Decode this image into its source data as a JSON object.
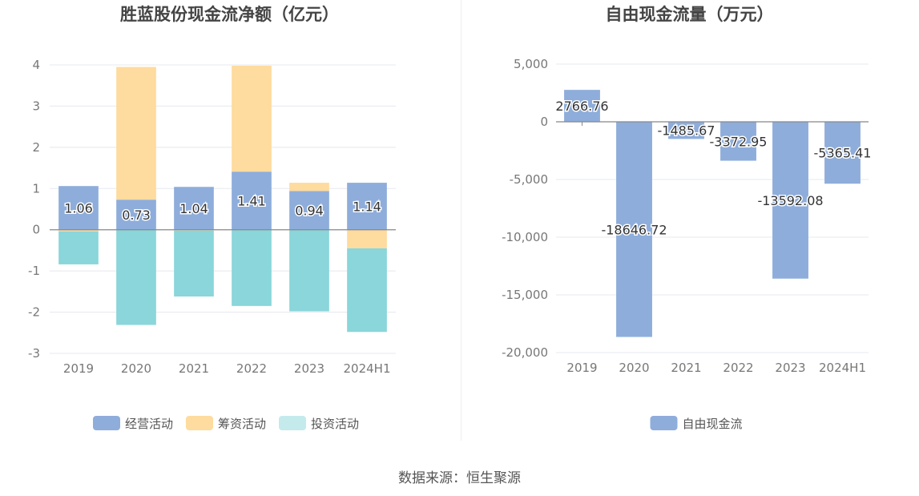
{
  "chart_data": [
    {
      "type": "bar",
      "stacked": true,
      "title": "胜蓝股份现金流净额（亿元）",
      "categories": [
        "2019",
        "2020",
        "2021",
        "2022",
        "2023",
        "2024H1"
      ],
      "ylim": [
        -3,
        4
      ],
      "yticks": [
        4,
        3,
        2,
        1,
        0,
        -1,
        -2,
        -3
      ],
      "grid": true,
      "legend_position": "bottom-center",
      "series": [
        {
          "name": "经营活动",
          "color": "#8EADDB",
          "values": [
            1.06,
            0.73,
            1.04,
            1.41,
            0.94,
            1.14
          ],
          "labels": [
            "1.06",
            "0.73",
            "1.04",
            "1.41",
            "0.94",
            "1.14"
          ]
        },
        {
          "name": "筹资活动",
          "color": "#FEDB9E",
          "values": [
            -0.04,
            3.22,
            -0.02,
            2.57,
            0.2,
            -0.45
          ]
        },
        {
          "name": "投资活动",
          "color": "#8AD6DA",
          "legend_color": "#C4EAEC",
          "values": [
            -0.8,
            -2.31,
            -1.6,
            -1.85,
            -1.98,
            -2.03
          ]
        }
      ]
    },
    {
      "type": "bar",
      "title": "自由现金流量（万元）",
      "categories": [
        "2019",
        "2020",
        "2021",
        "2022",
        "2023",
        "2024H1"
      ],
      "ylim": [
        -20000,
        5000
      ],
      "yticks": [
        5000,
        0,
        -5000,
        -10000,
        -15000,
        -20000
      ],
      "ytick_labels": [
        "5,000",
        "0",
        "-5,000",
        "-10,000",
        "-15,000",
        "-20,000"
      ],
      "grid": true,
      "legend_position": "bottom-center",
      "series": [
        {
          "name": "自由现金流",
          "color": "#8EADDB",
          "values": [
            2766.76,
            -18646.72,
            -1485.67,
            -3372.95,
            -13592.08,
            -5365.41
          ],
          "labels": [
            "2766.76",
            "-18646.72",
            "-1485.67",
            "-3372.95",
            "-13592.08",
            "-5365.41"
          ]
        }
      ]
    }
  ],
  "source": "数据来源：恒生聚源"
}
